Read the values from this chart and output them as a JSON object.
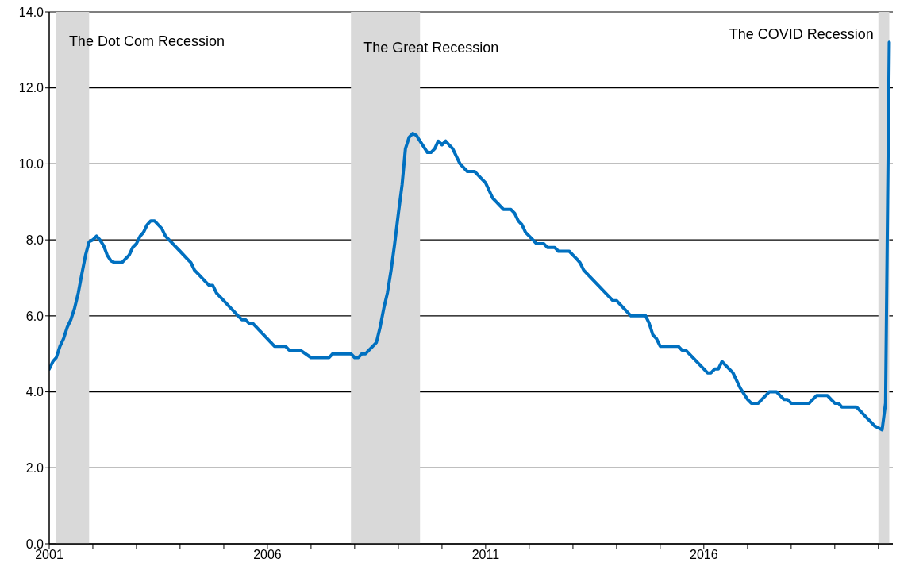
{
  "chart_data": {
    "type": "line",
    "x": [
      "2001-01",
      "2001-02",
      "2001-03",
      "2001-04",
      "2001-05",
      "2001-06",
      "2001-07",
      "2001-08",
      "2001-09",
      "2001-10",
      "2001-11",
      "2001-12",
      "2002-01",
      "2002-02",
      "2002-03",
      "2002-04",
      "2002-05",
      "2002-06",
      "2002-07",
      "2002-09",
      "2002-10",
      "2002-11",
      "2002-12",
      "2003-01",
      "2003-02",
      "2003-03",
      "2003-04",
      "2003-05",
      "2003-06",
      "2003-07",
      "2003-08",
      "2003-09",
      "2003-10",
      "2004-01",
      "2004-03",
      "2004-04",
      "2004-05",
      "2004-06",
      "2004-08",
      "2004-09",
      "2004-10",
      "2004-11",
      "2005-05",
      "2005-06",
      "2005-07",
      "2005-08",
      "2005-09",
      "2006-03",
      "2006-06",
      "2006-07",
      "2006-10",
      "2007-01",
      "2007-06",
      "2007-07",
      "2007-12",
      "2008-01",
      "2008-02",
      "2008-03",
      "2008-04",
      "2008-05",
      "2008-06",
      "2008-07",
      "2008-08",
      "2008-09",
      "2008-10",
      "2008-11",
      "2008-12",
      "2009-01",
      "2009-02",
      "2009-03",
      "2009-04",
      "2009-05",
      "2009-06",
      "2009-07",
      "2009-08",
      "2009-09",
      "2009-10",
      "2009-11",
      "2009-12",
      "2010-01",
      "2010-02",
      "2010-03",
      "2010-04",
      "2010-05",
      "2010-06",
      "2010-07",
      "2010-08",
      "2010-10",
      "2010-11",
      "2010-12",
      "2011-01",
      "2011-03",
      "2011-04",
      "2011-05",
      "2011-06",
      "2011-08",
      "2011-09",
      "2011-10",
      "2011-11",
      "2011-12",
      "2012-01",
      "2012-02",
      "2012-03",
      "2012-05",
      "2012-06",
      "2012-08",
      "2012-09",
      "2012-12",
      "2013-01",
      "2013-02",
      "2013-03",
      "2013-04",
      "2013-12",
      "2014-01",
      "2014-04",
      "2014-05",
      "2014-09",
      "2014-10",
      "2014-11",
      "2014-12",
      "2015-01",
      "2015-06",
      "2015-07",
      "2015-08",
      "2016-02",
      "2016-03",
      "2016-04",
      "2016-05",
      "2016-06",
      "2016-07",
      "2016-08",
      "2016-09",
      "2016-10",
      "2016-11",
      "2016-12",
      "2017-01",
      "2017-02",
      "2017-04",
      "2017-05",
      "2017-06",
      "2017-07",
      "2017-09",
      "2017-10",
      "2017-11",
      "2017-12",
      "2018-01",
      "2018-06",
      "2018-07",
      "2018-08",
      "2018-11",
      "2018-12",
      "2019-01",
      "2019-02",
      "2019-03",
      "2019-07",
      "2019-08",
      "2019-09",
      "2019-10",
      "2019-11",
      "2019-12",
      "2020-01",
      "2020-02",
      "2020-03",
      "2020-04"
    ],
    "series": [
      {
        "color": "#0070c0",
        "values": [
          4.6,
          4.8,
          4.9,
          5.2,
          5.4,
          5.7,
          5.9,
          6.2,
          6.6,
          7.1,
          7.6,
          7.95,
          8.0,
          8.1,
          8.0,
          7.85,
          7.6,
          7.45,
          7.4,
          7.4,
          7.5,
          7.6,
          7.8,
          7.9,
          8.1,
          8.2,
          8.4,
          8.5,
          8.5,
          8.4,
          8.3,
          8.1,
          8.0,
          7.7,
          7.5,
          7.4,
          7.2,
          7.1,
          6.9,
          6.8,
          6.8,
          6.6,
          6.0,
          5.9,
          5.9,
          5.8,
          5.8,
          5.2,
          5.2,
          5.1,
          5.1,
          4.9,
          4.9,
          5.0,
          5.0,
          4.9,
          4.9,
          5.0,
          5.0,
          5.1,
          5.2,
          5.3,
          5.7,
          6.2,
          6.6,
          7.2,
          7.9,
          8.7,
          9.45,
          10.4,
          10.7,
          10.8,
          10.75,
          10.6,
          10.45,
          10.3,
          10.3,
          10.4,
          10.6,
          10.5,
          10.6,
          10.5,
          10.4,
          10.2,
          10.0,
          9.9,
          9.8,
          9.8,
          9.7,
          9.6,
          9.5,
          9.1,
          9.0,
          8.9,
          8.8,
          8.8,
          8.7,
          8.5,
          8.4,
          8.2,
          8.1,
          8.0,
          7.9,
          7.9,
          7.8,
          7.8,
          7.7,
          7.7,
          7.6,
          7.5,
          7.4,
          7.2,
          6.4,
          6.4,
          6.1,
          6.0,
          6.0,
          5.8,
          5.5,
          5.4,
          5.2,
          5.2,
          5.1,
          5.1,
          4.5,
          4.5,
          4.6,
          4.6,
          4.8,
          4.7,
          4.6,
          4.5,
          4.3,
          4.1,
          3.95,
          3.8,
          3.7,
          3.7,
          3.8,
          3.9,
          4.0,
          4.0,
          3.9,
          3.8,
          3.8,
          3.7,
          3.7,
          3.8,
          3.9,
          3.9,
          3.8,
          3.7,
          3.7,
          3.6,
          3.6,
          3.5,
          3.4,
          3.3,
          3.2,
          3.1,
          3.05,
          3.0,
          3.7,
          13.2
        ]
      }
    ],
    "xlim": [
      "2001-01",
      "2020-05"
    ],
    "xticks": [
      {
        "value": "2001",
        "label": "2001"
      },
      {
        "value": "2002",
        "label": null
      },
      {
        "value": "2003",
        "label": null
      },
      {
        "value": "2004",
        "label": null
      },
      {
        "value": "2005",
        "label": null
      },
      {
        "value": "2006",
        "label": "2006"
      },
      {
        "value": "2007",
        "label": null
      },
      {
        "value": "2008",
        "label": null
      },
      {
        "value": "2009",
        "label": null
      },
      {
        "value": "2010",
        "label": null
      },
      {
        "value": "2011",
        "label": "2011"
      },
      {
        "value": "2012",
        "label": null
      },
      {
        "value": "2013",
        "label": null
      },
      {
        "value": "2014",
        "label": null
      },
      {
        "value": "2015",
        "label": null
      },
      {
        "value": "2016",
        "label": "2016"
      },
      {
        "value": "2017",
        "label": null
      },
      {
        "value": "2018",
        "label": null
      },
      {
        "value": "2019",
        "label": null
      },
      {
        "value": "2020",
        "label": null
      }
    ],
    "ylim": [
      0,
      14
    ],
    "yticks": [
      {
        "value": 0,
        "label": "0.0"
      },
      {
        "value": 2,
        "label": "2.0"
      },
      {
        "value": 4,
        "label": "4.0"
      },
      {
        "value": 6,
        "label": "6.0"
      },
      {
        "value": 8,
        "label": "8.0"
      },
      {
        "value": 10,
        "label": "10.0"
      },
      {
        "value": 12,
        "label": "12.0"
      },
      {
        "value": 14,
        "label": "14.0"
      }
    ],
    "grid": "y",
    "marker": "none",
    "line_style": "solid",
    "bands": [
      {
        "axis": "x",
        "from": "2001-03",
        "to": "2001-12",
        "label": "The Dot Com Recession",
        "color": "#d9d9d9"
      },
      {
        "axis": "x",
        "from": "2007-12",
        "to": "2009-07",
        "label": "The Great Recession",
        "color": "#d9d9d9"
      },
      {
        "axis": "x",
        "from": "2020-01",
        "to": "2020-04",
        "label": "The COVID Recession",
        "color": "#d9d9d9"
      }
    ]
  }
}
